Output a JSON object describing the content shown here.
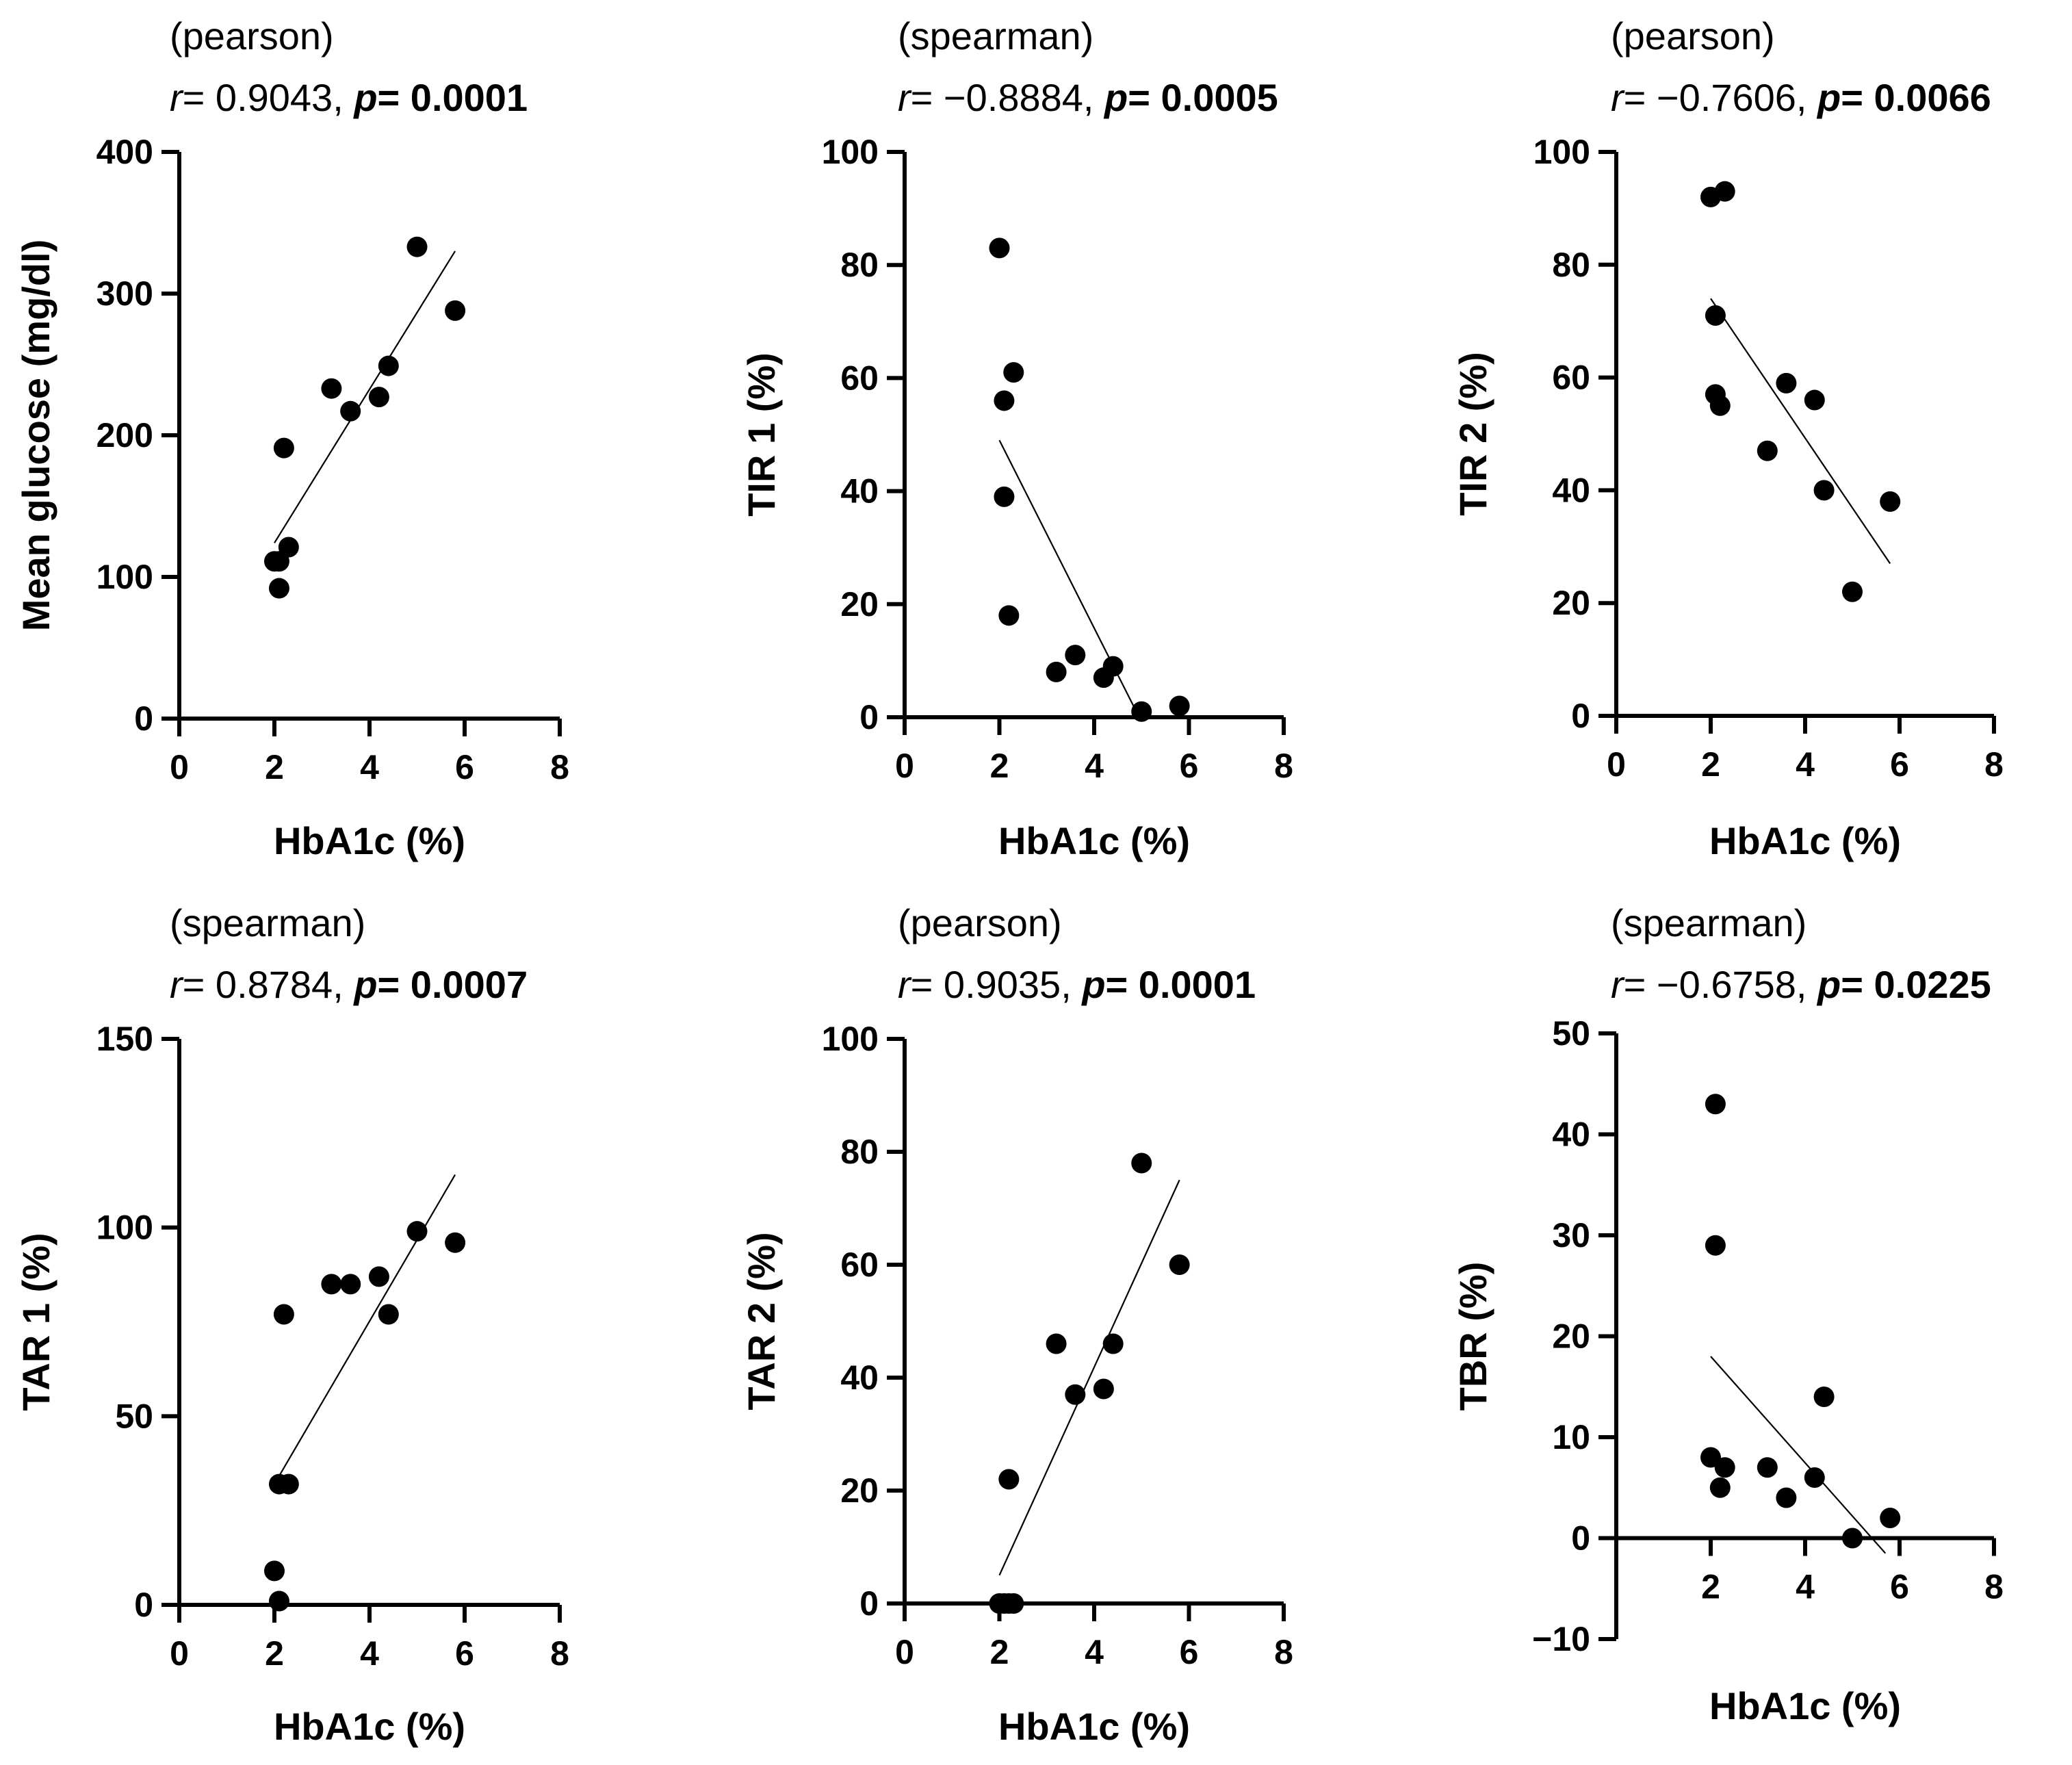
{
  "chart_data": [
    {
      "type": "scatter",
      "method": "(pearson)",
      "r_label": "r",
      "r_value": "= 0.9043, ",
      "p_label": "p",
      "p_value": "= 0.0001",
      "xlabel": "HbA1c (%)",
      "ylabel": "Mean glucose (mg/dl)",
      "xlim": [
        0,
        8
      ],
      "ylim": [
        0,
        400
      ],
      "xticks": [
        0,
        2,
        4,
        6,
        8
      ],
      "yticks": [
        0,
        100,
        200,
        300,
        400
      ],
      "x_axis_at": 0,
      "x": [
        2.0,
        2.1,
        2.1,
        2.2,
        2.3,
        3.2,
        3.6,
        4.2,
        4.4,
        5.0,
        5.8
      ],
      "y": [
        111,
        111,
        92,
        191,
        121,
        233,
        217,
        227,
        249,
        333,
        288
      ],
      "fit": {
        "x": [
          2.0,
          5.8
        ],
        "y": [
          124,
          330
        ]
      }
    },
    {
      "type": "scatter",
      "method": "(spearman)",
      "r_label": "r",
      "r_value": "= −0.8884, ",
      "p_label": "p",
      "p_value": "= 0.0005",
      "xlabel": "HbA1c (%)",
      "ylabel": "TIR 1 (%)",
      "xlim": [
        0,
        8
      ],
      "ylim": [
        0,
        100
      ],
      "xticks": [
        0,
        2,
        4,
        6,
        8
      ],
      "yticks": [
        0,
        20,
        40,
        60,
        80,
        100
      ],
      "x_axis_at": 0,
      "x": [
        2.0,
        2.1,
        2.1,
        2.2,
        2.3,
        3.2,
        3.6,
        4.2,
        4.4,
        5.0,
        5.8
      ],
      "y": [
        83,
        56,
        39,
        18,
        61,
        8,
        11,
        7,
        9,
        1,
        2
      ],
      "fit": {
        "x": [
          2.0,
          4.95
        ],
        "y": [
          49,
          0
        ]
      }
    },
    {
      "type": "scatter",
      "method": "(pearson)",
      "r_label": "r",
      "r_value": "= −0.7606, ",
      "p_label": "p",
      "p_value": "= 0.0066",
      "xlabel": "HbA1c (%)",
      "ylabel": "TIR 2 (%)",
      "xlim": [
        0,
        8
      ],
      "ylim": [
        0,
        100
      ],
      "xticks": [
        0,
        2,
        4,
        6,
        8
      ],
      "yticks": [
        0,
        20,
        40,
        60,
        80,
        100
      ],
      "x_axis_at": 0,
      "x": [
        2.0,
        2.1,
        2.1,
        2.2,
        2.3,
        3.2,
        3.6,
        4.2,
        4.4,
        5.0,
        5.8
      ],
      "y": [
        92,
        71,
        57,
        55,
        93,
        47,
        59,
        56,
        40,
        22,
        38
      ],
      "fit": {
        "x": [
          2.0,
          5.8
        ],
        "y": [
          74,
          27
        ]
      }
    },
    {
      "type": "scatter",
      "method": "(spearman)",
      "r_label": "r",
      "r_value": "= 0.8784, ",
      "p_label": "p",
      "p_value": "= 0.0007",
      "xlabel": "HbA1c (%)",
      "ylabel": "TAR 1 (%)",
      "xlim": [
        0,
        8
      ],
      "ylim": [
        0,
        150
      ],
      "xticks": [
        0,
        2,
        4,
        6,
        8
      ],
      "yticks": [
        0,
        50,
        100,
        150
      ],
      "x_axis_at": 0,
      "x": [
        2.0,
        2.1,
        2.1,
        2.2,
        2.3,
        3.2,
        3.6,
        4.2,
        4.4,
        5.0,
        5.8
      ],
      "y": [
        9,
        1,
        32,
        77,
        32,
        85,
        85,
        87,
        77,
        99,
        96
      ],
      "fit": {
        "x": [
          2.0,
          5.8
        ],
        "y": [
          32,
          114
        ]
      }
    },
    {
      "type": "scatter",
      "method": "(pearson)",
      "r_label": "r",
      "r_value": "= 0.9035, ",
      "p_label": "p",
      "p_value": "= 0.0001",
      "xlabel": "HbA1c (%)",
      "ylabel": "TAR 2 (%)",
      "xlim": [
        0,
        8
      ],
      "ylim": [
        0,
        100
      ],
      "xticks": [
        0,
        2,
        4,
        6,
        8
      ],
      "yticks": [
        0,
        20,
        40,
        60,
        80,
        100
      ],
      "x_axis_at": 0,
      "x": [
        2.0,
        2.1,
        2.2,
        2.2,
        2.3,
        3.2,
        3.6,
        4.2,
        4.4,
        5.0,
        5.8
      ],
      "y": [
        0,
        0,
        22,
        0,
        0,
        46,
        37,
        38,
        46,
        78,
        60
      ],
      "fit": {
        "x": [
          2.0,
          5.8
        ],
        "y": [
          5,
          75
        ]
      }
    },
    {
      "type": "scatter",
      "method": "(spearman)",
      "r_label": "r",
      "r_value": "= −0.6758, ",
      "p_label": "p",
      "p_value": "= 0.0225",
      "xlabel": "HbA1c (%)",
      "ylabel": "TBR (%)",
      "xlim": [
        0,
        8
      ],
      "ylim": [
        -10,
        50
      ],
      "xticks": [
        2,
        4,
        6,
        8
      ],
      "yticks": [
        -10,
        0,
        10,
        20,
        30,
        40,
        50
      ],
      "ytick_labels": [
        "−10",
        "0",
        "10",
        "20",
        "30",
        "40",
        "50"
      ],
      "x_axis_at": 0,
      "x": [
        2.0,
        2.1,
        2.1,
        2.2,
        2.3,
        3.2,
        3.6,
        4.2,
        4.4,
        5.0,
        5.8
      ],
      "y": [
        8,
        43,
        29,
        5,
        7,
        7,
        4,
        6,
        14,
        0,
        2
      ],
      "fit": {
        "x": [
          2.0,
          5.7
        ],
        "y": [
          18,
          -1.5
        ]
      }
    }
  ]
}
